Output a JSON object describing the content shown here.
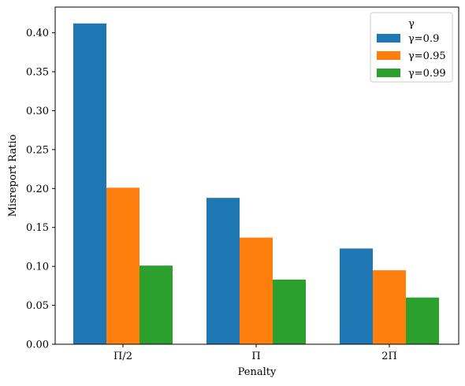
{
  "chart_data": {
    "type": "bar",
    "categories": [
      "Π/2",
      "Π",
      "2Π"
    ],
    "series": [
      {
        "name": "γ=0.9",
        "color": "#1f77b4",
        "values": [
          0.412,
          0.188,
          0.123
        ]
      },
      {
        "name": "γ=0.95",
        "color": "#ff7f0e",
        "values": [
          0.201,
          0.137,
          0.095
        ]
      },
      {
        "name": "γ=0.99",
        "color": "#2ca02c",
        "values": [
          0.101,
          0.083,
          0.06
        ]
      }
    ],
    "xlabel": "Penalty",
    "ylabel": "Misreport Ratio",
    "ylim": [
      0,
      0.433
    ],
    "yticks": [
      0.0,
      0.05,
      0.1,
      0.15,
      0.2,
      0.25,
      0.3,
      0.35,
      0.4
    ],
    "ytick_labels": [
      "0.00",
      "0.05",
      "0.10",
      "0.15",
      "0.20",
      "0.25",
      "0.30",
      "0.35",
      "0.40"
    ],
    "legend": {
      "title": "γ",
      "placement": "top-right"
    },
    "grid": false
  }
}
